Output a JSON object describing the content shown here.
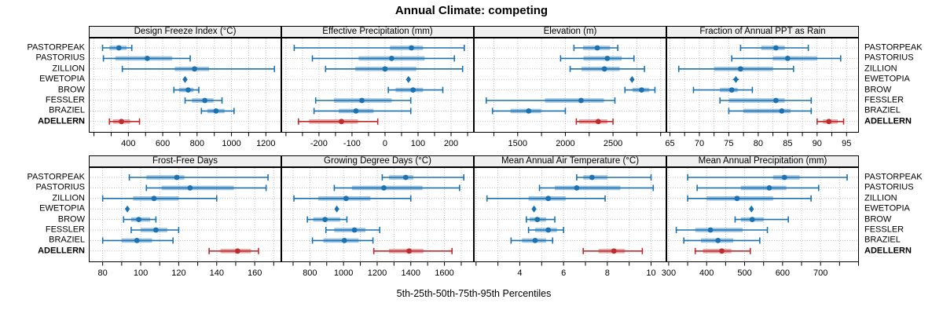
{
  "title": "Annual Climate: competing",
  "footer": "5th-25th-50th-75th-95th Percentiles",
  "sites": [
    "PASTORPEAK",
    "PASTORIUS",
    "ZILLION",
    "EWETOPIA",
    "BROW",
    "FESSLER",
    "BRAZIEL",
    "ADELLERN"
  ],
  "highlight_site": "ADELLERN",
  "colors": {
    "series": "#1b72b2",
    "highlight": "#c02b2e",
    "strip_bg": "#f0f0f0",
    "grid": "#bfbfbf",
    "border": "#000000"
  },
  "chart_data": [
    {
      "type": "percentile-range",
      "title": "Design Freeze Index (°C)",
      "xlim": [
        170,
        1290
      ],
      "major_ticks": [
        400,
        600,
        800,
        1000,
        1200
      ],
      "ticks": [
        200,
        300,
        400,
        500,
        600,
        700,
        800,
        900,
        1000,
        1100,
        1200
      ],
      "series": {
        "PASTORPEAK": [
          250,
          290,
          345,
          390,
          420
        ],
        "PASTORIUS": [
          255,
          325,
          510,
          655,
          760
        ],
        "ZILLION": [
          365,
          670,
          785,
          870,
          1250
        ],
        "EWETOPIA": [
          720,
          726,
          730,
          734,
          740
        ],
        "BROW": [
          665,
          695,
          748,
          778,
          810
        ],
        "FESSLER": [
          730,
          770,
          845,
          895,
          945
        ],
        "BRAZIEL": [
          825,
          860,
          910,
          960,
          1015
        ],
        "ADELLERN": [
          290,
          310,
          360,
          410,
          465
        ]
      }
    },
    {
      "type": "percentile-range",
      "title": "Effective Precipitation (mm)",
      "xlim": [
        -314,
        269
      ],
      "major_ticks": [
        -200,
        -100,
        0,
        100,
        200
      ],
      "ticks": [
        -300,
        -250,
        -200,
        -150,
        -100,
        -50,
        0,
        50,
        100,
        150,
        200,
        250
      ],
      "series": {
        "PASTORPEAK": [
          -275,
          15,
          80,
          115,
          240
        ],
        "PASTORIUS": [
          -220,
          -80,
          20,
          120,
          210
        ],
        "ZILLION": [
          -180,
          -90,
          0,
          95,
          235
        ],
        "EWETOPIA": [
          66,
          69,
          71,
          73,
          76
        ],
        "BROW": [
          10,
          32,
          85,
          115,
          175
        ],
        "FESSLER": [
          -210,
          -155,
          -70,
          20,
          78
        ],
        "BRAZIEL": [
          -215,
          -140,
          -88,
          -35,
          78
        ],
        "ADELLERN": [
          -262,
          -230,
          -132,
          -82,
          -22
        ]
      }
    },
    {
      "type": "percentile-range",
      "title": "Elevation (m)",
      "xlim": [
        1040,
        3060
      ],
      "major_ticks": [
        1500,
        2000,
        2500
      ],
      "ticks": [
        1250,
        1500,
        1750,
        2000,
        2250,
        2500,
        2750,
        3000
      ],
      "series": {
        "PASTORPEAK": [
          2090,
          2185,
          2335,
          2470,
          2550
        ],
        "PASTORIUS": [
          1950,
          2190,
          2440,
          2590,
          2720
        ],
        "ZILLION": [
          2050,
          2170,
          2410,
          2570,
          2830
        ],
        "EWETOPIA": [
          2680,
          2690,
          2700,
          2710,
          2720
        ],
        "BROW": [
          2625,
          2705,
          2800,
          2880,
          2940
        ],
        "FESSLER": [
          1170,
          1785,
          2165,
          2405,
          2520
        ],
        "BRAZIEL": [
          1235,
          1425,
          1615,
          1745,
          2000
        ],
        "ADELLERN": [
          2115,
          2145,
          2345,
          2440,
          2500
        ]
      }
    },
    {
      "type": "percentile-range",
      "title": "Fraction of Annual PPT as Rain",
      "xlim": [
        64.4,
        97.1
      ],
      "major_ticks": [
        65,
        70,
        75,
        80,
        85,
        90,
        95
      ],
      "ticks": [
        65,
        67.5,
        70,
        72.5,
        75,
        77.5,
        80,
        82.5,
        85,
        87.5,
        90,
        92.5,
        95
      ],
      "series": {
        "PASTORPEAK": [
          77,
          80.5,
          83,
          84.5,
          88.5
        ],
        "PASTORIUS": [
          75.5,
          82.5,
          85,
          90,
          94
        ],
        "ZILLION": [
          66.5,
          72.5,
          77,
          82.5,
          86
        ],
        "EWETOPIA": [
          75.7,
          76,
          76.2,
          76.4,
          76.7
        ],
        "BROW": [
          69,
          73.5,
          75.5,
          76.5,
          79
        ],
        "FESSLER": [
          73.5,
          75,
          83,
          84.5,
          89
        ],
        "BRAZIEL": [
          75,
          77.5,
          84,
          85.5,
          89
        ],
        "ADELLERN": [
          90,
          91,
          92,
          93.5,
          94.5
        ]
      }
    },
    {
      "type": "percentile-range",
      "title": "Frost-Free Days",
      "xlim": [
        72.7,
        174
      ],
      "major_ticks": [
        80,
        100,
        120,
        140,
        160
      ],
      "ticks": [
        80,
        90,
        100,
        110,
        120,
        130,
        140,
        150,
        160,
        170
      ],
      "series": {
        "PASTORPEAK": [
          94,
          103,
          119,
          123,
          167
        ],
        "PASTORIUS": [
          103,
          111,
          126,
          149,
          166
        ],
        "ZILLION": [
          80,
          96,
          107,
          120,
          140
        ],
        "EWETOPIA": [
          92.5,
          92.8,
          93,
          93.2,
          93.5
        ],
        "BROW": [
          91,
          95,
          99,
          105,
          108
        ],
        "FESSLER": [
          95,
          100,
          108,
          114,
          120
        ],
        "BRAZIEL": [
          80,
          90,
          98,
          106,
          117
        ],
        "ADELLERN": [
          136,
          142,
          151,
          158,
          162
        ]
      }
    },
    {
      "type": "percentile-range",
      "title": "Growing Degree Days (°C)",
      "xlim": [
        630,
        1775
      ],
      "major_ticks": [
        800,
        1000,
        1200,
        1400,
        1600
      ],
      "ticks": [
        700,
        800,
        900,
        1000,
        1100,
        1200,
        1300,
        1400,
        1500,
        1600,
        1700
      ],
      "series": {
        "PASTORPEAK": [
          1230,
          1270,
          1370,
          1415,
          1715
        ],
        "PASTORIUS": [
          945,
          1050,
          1240,
          1470,
          1690
        ],
        "ZILLION": [
          705,
          850,
          1015,
          1160,
          1400
        ],
        "EWETOPIA": [
          950,
          956,
          960,
          964,
          970
        ],
        "BROW": [
          785,
          820,
          890,
          980,
          1020
        ],
        "FESSLER": [
          895,
          945,
          1065,
          1130,
          1215
        ],
        "BRAZIEL": [
          815,
          880,
          1005,
          1090,
          1175
        ],
        "ADELLERN": [
          1180,
          1270,
          1390,
          1475,
          1645
        ]
      }
    },
    {
      "type": "percentile-range",
      "title": "Mean Annual Air Temperature (°C)",
      "xlim": [
        1.9,
        10.7
      ],
      "major_ticks": [
        4,
        6,
        8,
        10
      ],
      "ticks": [
        2,
        3,
        4,
        5,
        6,
        7,
        8,
        9,
        10
      ],
      "series": {
        "PASTORPEAK": [
          6.6,
          6.9,
          7.3,
          8.0,
          10.0
        ],
        "PASTORIUS": [
          4.9,
          5.6,
          6.6,
          8.6,
          10.1
        ],
        "ZILLION": [
          2.5,
          4.4,
          5.3,
          6.1,
          7.9
        ],
        "EWETOPIA": [
          4.55,
          4.6,
          4.65,
          4.7,
          4.75
        ],
        "BROW": [
          4.3,
          4.45,
          4.8,
          5.2,
          5.6
        ],
        "FESSLER": [
          4.4,
          4.7,
          5.3,
          5.7,
          6.0
        ],
        "BRAZIEL": [
          3.6,
          4.1,
          4.7,
          5.2,
          5.5
        ],
        "ADELLERN": [
          6.9,
          7.6,
          8.3,
          8.8,
          9.6
        ]
      }
    },
    {
      "type": "percentile-range",
      "title": "Mean Annual Precipitation (mm)",
      "xlim": [
        294,
        801
      ],
      "major_ticks": [
        300,
        400,
        500,
        600,
        700
      ],
      "ticks": [
        300,
        350,
        400,
        450,
        500,
        550,
        600,
        650,
        700,
        750,
        800
      ],
      "series": {
        "PASTORPEAK": [
          350,
          575,
          605,
          645,
          770
        ],
        "PASTORIUS": [
          375,
          490,
          565,
          610,
          695
        ],
        "ZILLION": [
          350,
          400,
          480,
          575,
          675
        ],
        "EWETOPIA": [
          512,
          515,
          518,
          521,
          524
        ],
        "BROW": [
          475,
          490,
          520,
          550,
          615
        ],
        "FESSLER": [
          320,
          370,
          410,
          495,
          560
        ],
        "BRAZIEL": [
          340,
          385,
          430,
          470,
          540
        ],
        "ADELLERN": [
          370,
          390,
          440,
          465,
          515
        ]
      }
    }
  ]
}
